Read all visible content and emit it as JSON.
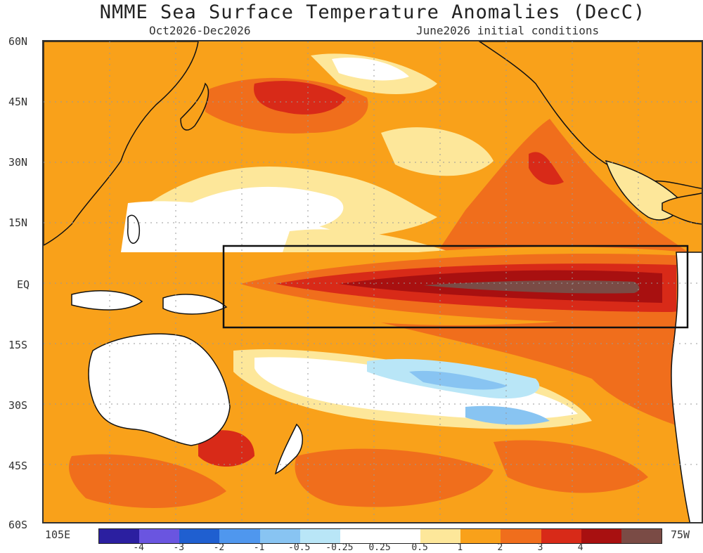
{
  "title": "NMME Sea Surface Temperature Anomalies (DecC)",
  "subtitle_left": "Oct2026-Dec2026",
  "subtitle_right": "June2026 initial conditions",
  "lat_labels": [
    "60N",
    "45N",
    "30N",
    "15N",
    "EQ",
    "15S",
    "30S",
    "45S",
    "60S"
  ],
  "lon_labels": {
    "west": "105E",
    "east": "75W"
  },
  "colorbar": {
    "colors": [
      "#2b1fa0",
      "#6a55e0",
      "#1f5fd0",
      "#4f97ee",
      "#88c4f2",
      "#b9e6f7",
      "#ffffff",
      "#ffffff",
      "#fde79a",
      "#f9a11a",
      "#f06e1c",
      "#d82a18",
      "#a81010",
      "#7a4b45"
    ],
    "tick_labels": [
      "-4",
      "-3",
      "-2",
      "-1",
      "-0.5",
      "-0.25",
      "0.25",
      "0.5",
      "1",
      "2",
      "3",
      "4"
    ]
  },
  "palette": {
    "light_orange": "#fde79a",
    "orange": "#f9a11a",
    "dark_orange": "#f06e1c",
    "red": "#d82a18",
    "dark_red": "#a81010",
    "brown": "#7a4b45",
    "light_blue": "#b9e6f7",
    "blue": "#88c4f2",
    "land": "#ffffff"
  },
  "nino_box_visible": true
}
